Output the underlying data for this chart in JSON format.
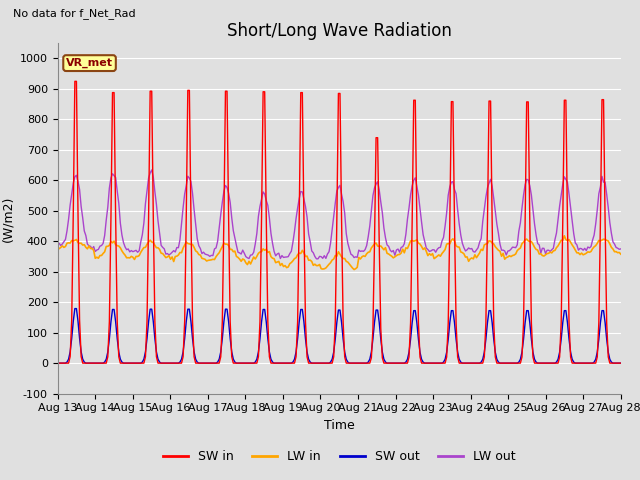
{
  "title": "Short/Long Wave Radiation",
  "subtitle": "No data for f_Net_Rad",
  "xlabel": "Time",
  "ylabel": "(W/m2)",
  "ylim": [
    -100,
    1050
  ],
  "n_days": 15,
  "x_tick_labels": [
    "Aug 13",
    "Aug 14",
    "Aug 15",
    "Aug 16",
    "Aug 17",
    "Aug 18",
    "Aug 19",
    "Aug 20",
    "Aug 21",
    "Aug 22",
    "Aug 23",
    "Aug 24",
    "Aug 25",
    "Aug 26",
    "Aug 27",
    "Aug 28"
  ],
  "legend_entries": [
    "SW in",
    "LW in",
    "SW out",
    "LW out"
  ],
  "sw_in_color": "#ff0000",
  "lw_in_color": "#ffa500",
  "sw_out_color": "#0000cc",
  "lw_out_color": "#aa44cc",
  "bg_color": "#e0e0e0",
  "grid_color": "#f0f0f0",
  "title_fontsize": 12,
  "label_fontsize": 9,
  "tick_fontsize": 8,
  "yticks": [
    -100,
    0,
    100,
    200,
    300,
    400,
    500,
    600,
    700,
    800,
    900,
    1000
  ]
}
